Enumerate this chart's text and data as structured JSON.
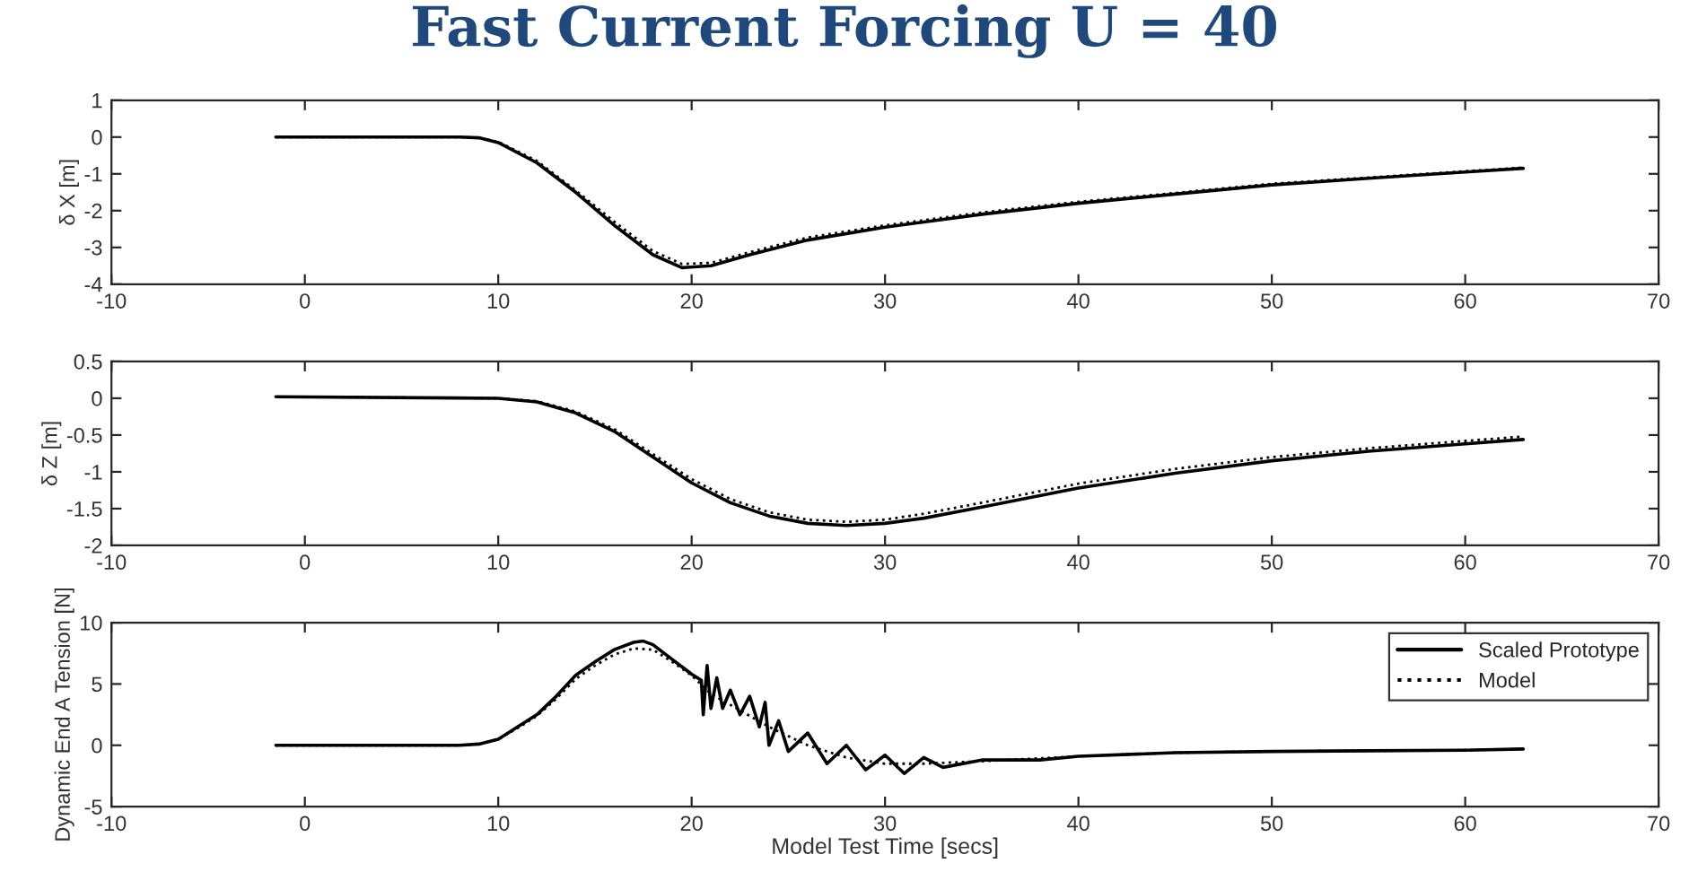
{
  "chart_data": [
    {
      "type": "line",
      "title": "Fast Current Forcing U = 40",
      "ylabel": "δ X [m]",
      "xlim": [
        -10,
        70
      ],
      "xticks": [
        -10,
        0,
        10,
        20,
        30,
        40,
        50,
        60,
        70
      ],
      "ylim": [
        -4,
        1
      ],
      "yticks": [
        -4,
        -3,
        -2,
        -1,
        0,
        1
      ],
      "grid": false,
      "legend": false,
      "series": [
        {
          "color": "#000000",
          "line_style": "solid",
          "x": [
            -1.5,
            8,
            9,
            10,
            12,
            14,
            16,
            18,
            19.5,
            21,
            23,
            26,
            30,
            35,
            40,
            45,
            50,
            55,
            60,
            63
          ],
          "values": [
            0,
            0,
            -0.02,
            -0.15,
            -0.7,
            -1.5,
            -2.4,
            -3.2,
            -3.55,
            -3.5,
            -3.2,
            -2.8,
            -2.45,
            -2.1,
            -1.8,
            -1.55,
            -1.3,
            -1.12,
            -0.95,
            -0.85
          ]
        },
        {
          "color": "#000000",
          "line_style": "dotted",
          "x": [
            -1.5,
            8,
            9,
            10,
            12,
            14,
            16,
            18,
            19.5,
            21,
            23,
            26,
            30,
            35,
            40,
            45,
            50,
            55,
            60,
            63
          ],
          "values": [
            0,
            0,
            -0.02,
            -0.13,
            -0.65,
            -1.45,
            -2.3,
            -3.1,
            -3.45,
            -3.42,
            -3.13,
            -2.73,
            -2.4,
            -2.05,
            -1.76,
            -1.52,
            -1.27,
            -1.1,
            -0.93,
            -0.83
          ]
        }
      ]
    },
    {
      "type": "line",
      "ylabel": "δ Z [m]",
      "xlim": [
        -10,
        70
      ],
      "xticks": [
        -10,
        0,
        10,
        20,
        30,
        40,
        50,
        60,
        70
      ],
      "ylim": [
        -2,
        0.5
      ],
      "yticks": [
        -2,
        -1.5,
        -1,
        -0.5,
        0,
        0.5
      ],
      "grid": false,
      "legend": false,
      "series": [
        {
          "color": "#000000",
          "line_style": "solid",
          "x": [
            -1.5,
            10,
            12,
            14,
            16,
            18,
            20,
            22,
            24,
            26,
            28,
            30,
            32,
            35,
            40,
            45,
            50,
            55,
            60,
            63
          ],
          "values": [
            0.02,
            0,
            -0.05,
            -0.2,
            -0.45,
            -0.8,
            -1.15,
            -1.42,
            -1.6,
            -1.7,
            -1.73,
            -1.7,
            -1.63,
            -1.48,
            -1.22,
            -1.02,
            -0.85,
            -0.72,
            -0.62,
            -0.56
          ]
        },
        {
          "color": "#000000",
          "line_style": "dotted",
          "x": [
            -1.5,
            10,
            12,
            14,
            16,
            18,
            20,
            22,
            24,
            26,
            28,
            30,
            32,
            35,
            40,
            45,
            50,
            55,
            60,
            63
          ],
          "values": [
            0.02,
            0,
            -0.04,
            -0.18,
            -0.42,
            -0.76,
            -1.1,
            -1.37,
            -1.55,
            -1.65,
            -1.68,
            -1.65,
            -1.57,
            -1.42,
            -1.16,
            -0.96,
            -0.8,
            -0.68,
            -0.58,
            -0.52
          ]
        }
      ]
    },
    {
      "type": "line",
      "xlabel": "Model Test Time [secs]",
      "ylabel": "Dynamic End A Tension [N]",
      "xlim": [
        -10,
        70
      ],
      "xticks": [
        -10,
        0,
        10,
        20,
        30,
        40,
        50,
        60,
        70
      ],
      "ylim": [
        -5,
        10
      ],
      "yticks": [
        -5,
        0,
        5,
        10
      ],
      "grid": false,
      "legend": "top right",
      "series": [
        {
          "name": "Scaled Prototype",
          "color": "#000000",
          "line_style": "solid",
          "x": [
            -1.5,
            8,
            9,
            10,
            11,
            12,
            13,
            14,
            15,
            16,
            17,
            17.5,
            18,
            19,
            20,
            20.5,
            20.6,
            20.8,
            21,
            21.3,
            21.6,
            22,
            22.5,
            23,
            23.5,
            23.8,
            24,
            24.5,
            25,
            26,
            27,
            28,
            29,
            30,
            31,
            32,
            33,
            35,
            38,
            40,
            45,
            50,
            55,
            60,
            63
          ],
          "values": [
            0,
            0,
            0.1,
            0.5,
            1.5,
            2.5,
            4,
            5.7,
            6.8,
            7.8,
            8.4,
            8.5,
            8.2,
            7,
            5.8,
            5.3,
            2.5,
            6.5,
            3,
            5.5,
            3,
            4.5,
            2.5,
            4,
            1.5,
            3.5,
            0,
            2,
            -0.5,
            1,
            -1.5,
            0,
            -2,
            -0.8,
            -2.3,
            -1,
            -1.8,
            -1.2,
            -1.2,
            -0.9,
            -0.6,
            -0.5,
            -0.45,
            -0.4,
            -0.3
          ]
        },
        {
          "name": "Model",
          "color": "#000000",
          "line_style": "dotted",
          "x": [
            -1.5,
            8,
            9,
            10,
            11,
            12,
            13,
            14,
            15,
            16,
            17,
            18,
            19,
            20,
            21,
            22,
            24,
            26,
            28,
            30,
            32,
            35,
            40,
            45,
            50,
            55,
            60,
            63
          ],
          "values": [
            0,
            0,
            0.1,
            0.5,
            1.4,
            2.4,
            3.8,
            5.4,
            6.5,
            7.4,
            7.9,
            7.8,
            6.8,
            5.7,
            4.2,
            3.3,
            1.5,
            0,
            -1,
            -1.5,
            -1.5,
            -1.3,
            -0.9,
            -0.6,
            -0.5,
            -0.45,
            -0.4,
            -0.3
          ]
        }
      ]
    }
  ]
}
